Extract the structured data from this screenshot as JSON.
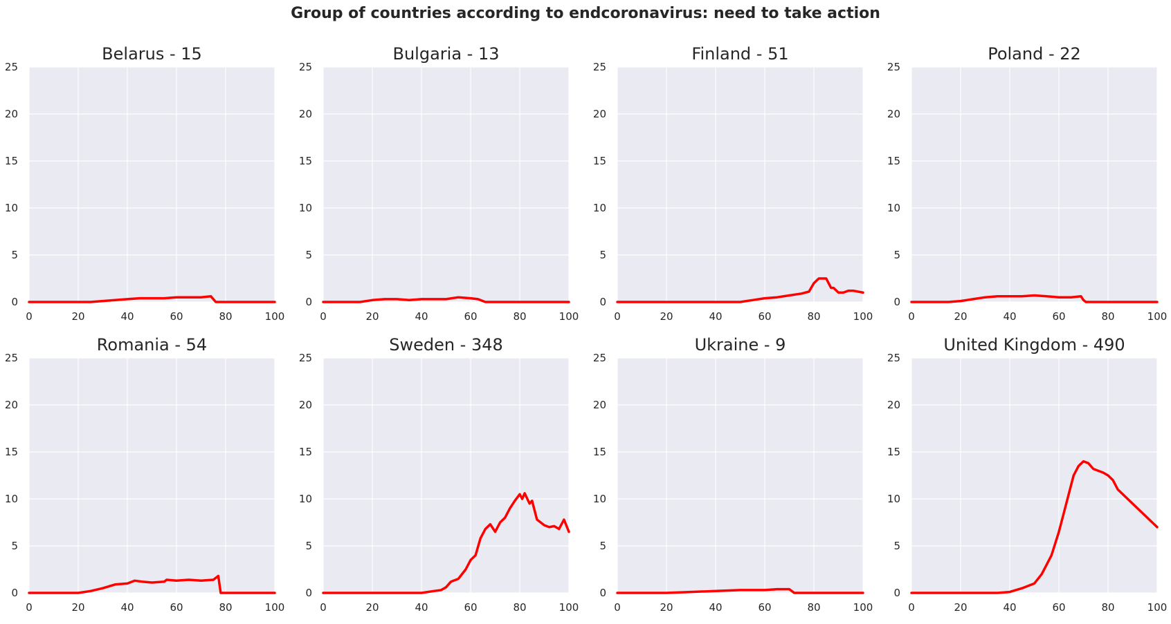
{
  "figure": {
    "suptitle": "Group of countries according to endcoronavirus: need to take action"
  },
  "colors": {
    "line": "#ff0000",
    "panel_bg": "#eaeaf2",
    "grid": "#ffffff",
    "text": "#262626"
  },
  "chart_data": [
    {
      "type": "line",
      "title": "Belarus - 15",
      "xlim": [
        0,
        100
      ],
      "ylim": [
        0,
        25
      ],
      "xticks": [
        0,
        20,
        40,
        60,
        80,
        100
      ],
      "yticks": [
        0,
        5,
        10,
        15,
        20,
        25
      ],
      "grid": true,
      "series": [
        {
          "x": [
            0,
            25,
            30,
            35,
            40,
            45,
            50,
            55,
            60,
            65,
            70,
            74,
            76,
            80,
            100
          ],
          "y": [
            0,
            0,
            0.1,
            0.2,
            0.3,
            0.4,
            0.4,
            0.4,
            0.5,
            0.5,
            0.5,
            0.6,
            0,
            0,
            0
          ]
        }
      ]
    },
    {
      "type": "line",
      "title": "Bulgaria - 13",
      "xlim": [
        0,
        100
      ],
      "ylim": [
        0,
        25
      ],
      "xticks": [
        0,
        20,
        40,
        60,
        80,
        100
      ],
      "yticks": [
        0,
        5,
        10,
        15,
        20,
        25
      ],
      "grid": true,
      "series": [
        {
          "x": [
            0,
            10,
            15,
            20,
            25,
            30,
            35,
            40,
            45,
            50,
            55,
            60,
            63,
            66,
            70,
            100
          ],
          "y": [
            0,
            0,
            0,
            0.2,
            0.3,
            0.3,
            0.2,
            0.3,
            0.3,
            0.3,
            0.5,
            0.4,
            0.3,
            0,
            0,
            0
          ]
        }
      ]
    },
    {
      "type": "line",
      "title": "Finland - 51",
      "xlim": [
        0,
        100
      ],
      "ylim": [
        0,
        25
      ],
      "xticks": [
        0,
        20,
        40,
        60,
        80,
        100
      ],
      "yticks": [
        0,
        5,
        10,
        15,
        20,
        25
      ],
      "grid": true,
      "series": [
        {
          "x": [
            0,
            50,
            55,
            60,
            65,
            70,
            75,
            78,
            80,
            82,
            85,
            86,
            87,
            88,
            90,
            92,
            94,
            96,
            100
          ],
          "y": [
            0,
            0,
            0.2,
            0.4,
            0.5,
            0.7,
            0.9,
            1.1,
            2.0,
            2.5,
            2.5,
            2.0,
            1.5,
            1.5,
            1.0,
            1.0,
            1.2,
            1.2,
            1.0
          ]
        }
      ]
    },
    {
      "type": "line",
      "title": "Poland - 22",
      "xlim": [
        0,
        100
      ],
      "ylim": [
        0,
        25
      ],
      "xticks": [
        0,
        20,
        40,
        60,
        80,
        100
      ],
      "yticks": [
        0,
        5,
        10,
        15,
        20,
        25
      ],
      "grid": true,
      "series": [
        {
          "x": [
            0,
            15,
            20,
            25,
            30,
            35,
            40,
            45,
            50,
            55,
            60,
            65,
            69,
            70,
            71,
            100
          ],
          "y": [
            0,
            0,
            0.1,
            0.3,
            0.5,
            0.6,
            0.6,
            0.6,
            0.7,
            0.6,
            0.5,
            0.5,
            0.6,
            0.2,
            0,
            0
          ]
        }
      ]
    },
    {
      "type": "line",
      "title": "Romania - 54",
      "xlim": [
        0,
        100
      ],
      "ylim": [
        0,
        25
      ],
      "xticks": [
        0,
        20,
        40,
        60,
        80,
        100
      ],
      "yticks": [
        0,
        5,
        10,
        15,
        20,
        25
      ],
      "grid": true,
      "series": [
        {
          "x": [
            0,
            20,
            25,
            30,
            35,
            40,
            43,
            46,
            50,
            55,
            56,
            60,
            65,
            70,
            75,
            77,
            78,
            80,
            100
          ],
          "y": [
            0,
            0,
            0.2,
            0.5,
            0.9,
            1.0,
            1.3,
            1.2,
            1.1,
            1.2,
            1.4,
            1.3,
            1.4,
            1.3,
            1.4,
            1.8,
            0,
            0,
            0
          ]
        }
      ]
    },
    {
      "type": "line",
      "title": "Sweden - 348",
      "xlim": [
        0,
        100
      ],
      "ylim": [
        0,
        25
      ],
      "xticks": [
        0,
        20,
        40,
        60,
        80,
        100
      ],
      "yticks": [
        0,
        5,
        10,
        15,
        20,
        25
      ],
      "grid": true,
      "series": [
        {
          "x": [
            0,
            40,
            45,
            48,
            50,
            52,
            55,
            58,
            60,
            62,
            64,
            66,
            68,
            70,
            72,
            74,
            76,
            78,
            80,
            81,
            82,
            84,
            85,
            87,
            90,
            92,
            94,
            96,
            98,
            100
          ],
          "y": [
            0,
            0,
            0.2,
            0.3,
            0.6,
            1.2,
            1.5,
            2.5,
            3.5,
            4.0,
            5.8,
            6.8,
            7.3,
            6.5,
            7.5,
            8.0,
            9.0,
            9.8,
            10.5,
            10.0,
            10.6,
            9.5,
            9.8,
            7.8,
            7.2,
            7.0,
            7.1,
            6.8,
            7.8,
            6.5
          ]
        }
      ]
    },
    {
      "type": "line",
      "title": "Ukraine - 9",
      "xlim": [
        0,
        100
      ],
      "ylim": [
        0,
        25
      ],
      "xticks": [
        0,
        20,
        40,
        60,
        80,
        100
      ],
      "yticks": [
        0,
        5,
        10,
        15,
        20,
        25
      ],
      "grid": true,
      "series": [
        {
          "x": [
            0,
            20,
            30,
            40,
            50,
            60,
            65,
            70,
            71,
            72,
            100
          ],
          "y": [
            0,
            0,
            0.1,
            0.2,
            0.3,
            0.3,
            0.4,
            0.4,
            0.2,
            0,
            0
          ]
        }
      ]
    },
    {
      "type": "line",
      "title": "United Kingdom - 490",
      "xlim": [
        0,
        100
      ],
      "ylim": [
        0,
        25
      ],
      "xticks": [
        0,
        20,
        40,
        60,
        80,
        100
      ],
      "yticks": [
        0,
        5,
        10,
        15,
        20,
        25
      ],
      "grid": true,
      "series": [
        {
          "x": [
            0,
            35,
            40,
            45,
            50,
            53,
            55,
            57,
            60,
            62,
            64,
            66,
            68,
            70,
            72,
            74,
            76,
            78,
            80,
            82,
            84,
            86,
            88,
            90,
            92,
            94,
            96,
            98,
            100
          ],
          "y": [
            0,
            0,
            0.1,
            0.5,
            1.0,
            2.0,
            3.0,
            4.0,
            6.5,
            8.5,
            10.5,
            12.5,
            13.5,
            14.0,
            13.8,
            13.2,
            13.0,
            12.8,
            12.5,
            12.0,
            11.0,
            10.5,
            10.0,
            9.5,
            9.0,
            8.5,
            8.0,
            7.5,
            7.0
          ]
        }
      ]
    }
  ]
}
